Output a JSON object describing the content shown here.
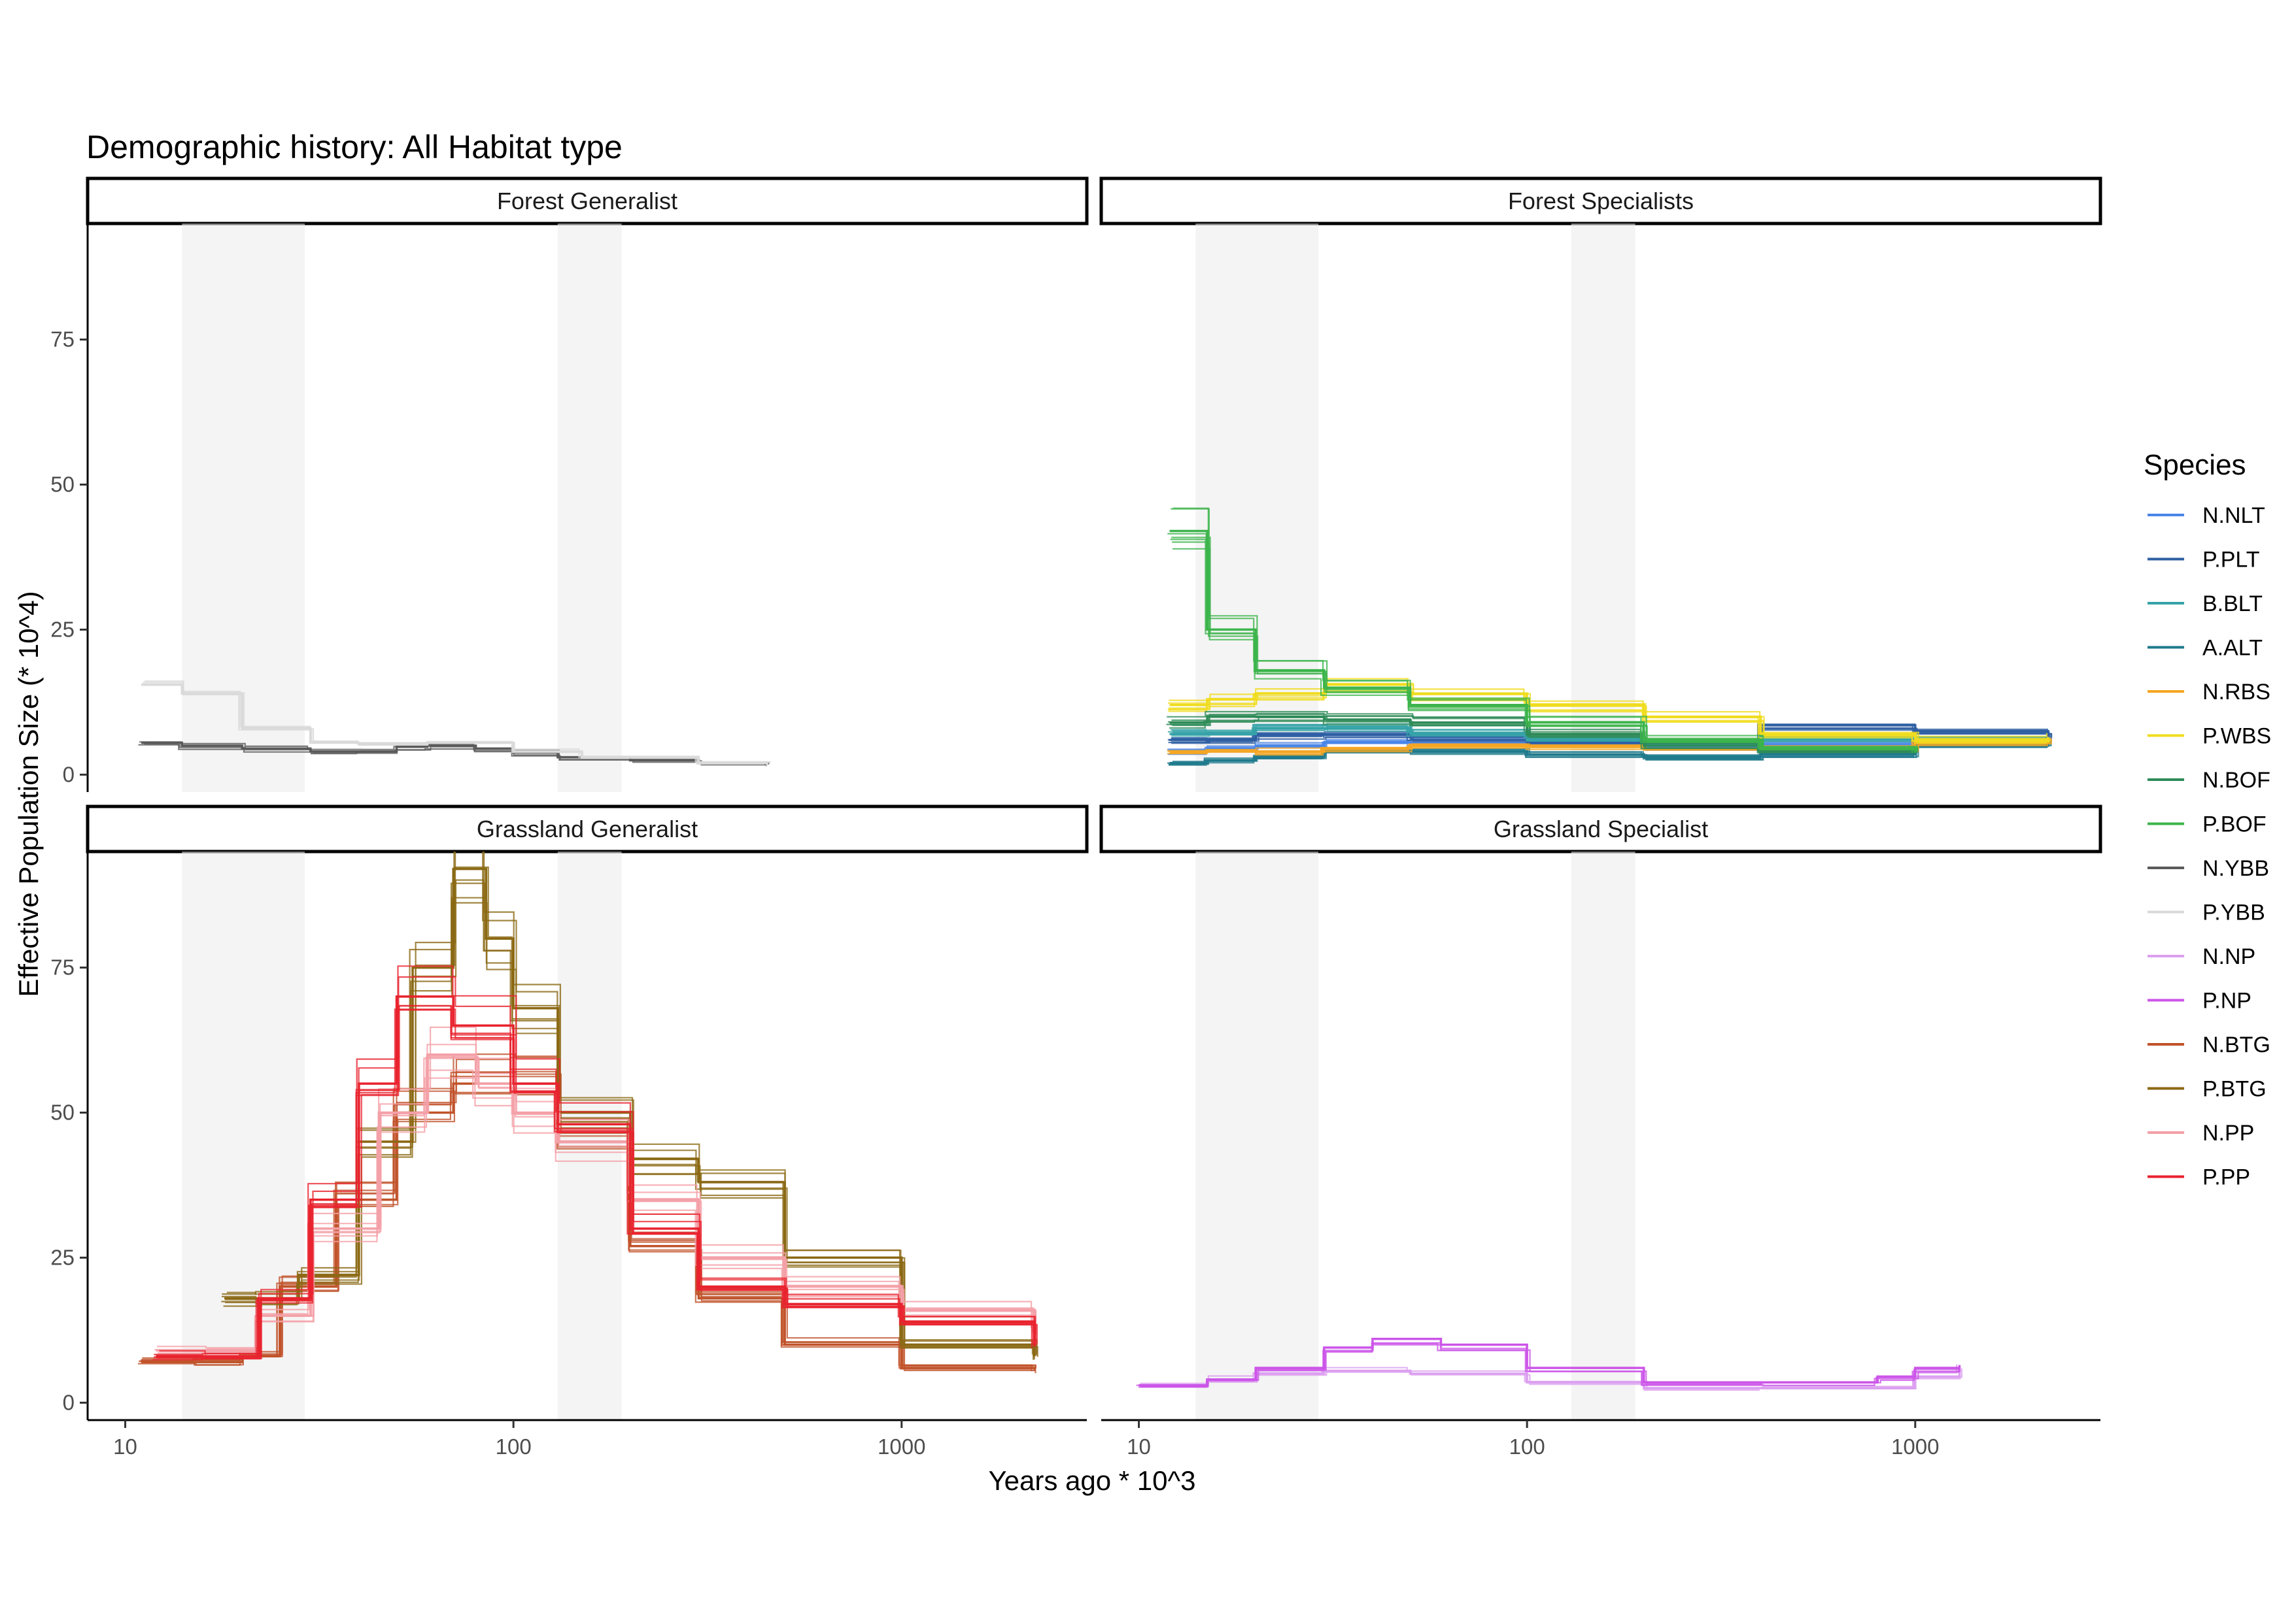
{
  "chart_data": {
    "type": "line",
    "title": "Demographic history: All Habitat type",
    "xlabel": "Years ago * 10^3",
    "ylabel": "Effective Population Size (* 10^4)",
    "x_scale": "log10",
    "xlim": [
      8,
      3000
    ],
    "ylim": [
      -3,
      95
    ],
    "x_ticks": [
      10,
      100,
      1000
    ],
    "x_tick_labels": [
      "10",
      "100",
      "1000"
    ],
    "y_ticks": [
      0,
      25,
      50,
      75
    ],
    "y_tick_labels": [
      "0",
      "25",
      "50",
      "75"
    ],
    "grid": false,
    "shaded_periods": [
      [
        14,
        29
      ],
      [
        130,
        190
      ]
    ],
    "legend": {
      "title": "Species",
      "placement": "right",
      "entries": [
        {
          "name": "N.NLT",
          "color": "#4a86e8"
        },
        {
          "name": "P.PLT",
          "color": "#2e5fa3"
        },
        {
          "name": "B.BLT",
          "color": "#35a3a8"
        },
        {
          "name": "A.ALT",
          "color": "#1f7a8c"
        },
        {
          "name": "N.RBS",
          "color": "#f5a623"
        },
        {
          "name": "P.WBS",
          "color": "#f0dc1e"
        },
        {
          "name": "N.BOF",
          "color": "#2e8b57"
        },
        {
          "name": "P.BOF",
          "color": "#3cb44b"
        },
        {
          "name": "N.YBB",
          "color": "#5a5a5a"
        },
        {
          "name": "P.YBB",
          "color": "#d9d9d9"
        },
        {
          "name": "N.NP",
          "color": "#dca0f0"
        },
        {
          "name": "P.NP",
          "color": "#cc55e8"
        },
        {
          "name": "N.BTG",
          "color": "#c0532a"
        },
        {
          "name": "P.BTG",
          "color": "#8b6914"
        },
        {
          "name": "N.PP",
          "color": "#f4a0a8"
        },
        {
          "name": "P.PP",
          "color": "#e8232e"
        }
      ]
    },
    "panels": [
      {
        "label": "Forest Generalist",
        "series": [
          {
            "name": "N.YBB",
            "x": [
              11,
              14,
              20,
              30,
              40,
              50,
              60,
              80,
              100,
              130,
              200,
              300,
              450
            ],
            "y": [
              5.5,
              5,
              4.5,
              4,
              4,
              4.8,
              5,
              4.5,
              3.8,
              3,
              2.5,
              2,
              1.8
            ]
          },
          {
            "name": "P.YBB",
            "x": [
              11,
              14,
              20,
              30,
              40,
              60,
              100,
              150,
              300,
              450
            ],
            "y": [
              15.5,
              14,
              8,
              5.5,
              5.2,
              5.5,
              4,
              3,
              2,
              1.8
            ]
          }
        ]
      },
      {
        "label": "Forest Specialists",
        "series": [
          {
            "name": "N.NLT",
            "x": [
              12,
              15,
              20,
              30,
              50,
              100,
              200,
              400,
              1000,
              2200
            ],
            "y": [
              4,
              4.5,
              5,
              5.5,
              5.5,
              5,
              4.8,
              5,
              5.5,
              6
            ]
          },
          {
            "name": "P.PLT",
            "x": [
              12,
              15,
              20,
              30,
              50,
              100,
              200,
              400,
              1000,
              2200
            ],
            "y": [
              6,
              6,
              7,
              7,
              6.5,
              5.5,
              5.5,
              8.5,
              7.5,
              6.5
            ]
          },
          {
            "name": "B.BLT",
            "x": [
              12,
              15,
              20,
              30,
              50,
              100,
              200,
              400,
              1000,
              2200
            ],
            "y": [
              7,
              7,
              8,
              8,
              7,
              6,
              5.5,
              6,
              6,
              6
            ]
          },
          {
            "name": "A.ALT",
            "x": [
              12,
              15,
              20,
              30,
              50,
              100,
              200,
              400,
              1000,
              2200
            ],
            "y": [
              2,
              2.5,
              3,
              4,
              4,
              3.5,
              3,
              3.5,
              5,
              6
            ]
          },
          {
            "name": "N.RBS",
            "x": [
              12,
              15,
              20,
              30,
              50,
              100,
              200,
              400,
              1000,
              2200
            ],
            "y": [
              4,
              4,
              4,
              4.5,
              5,
              5,
              4.5,
              4.5,
              5.5,
              6
            ]
          },
          {
            "name": "P.WBS",
            "x": [
              12,
              15,
              20,
              30,
              50,
              100,
              200,
              400,
              1000,
              2200
            ],
            "y": [
              12,
              13,
              14,
              15.5,
              14,
              12,
              10,
              7,
              6,
              6.5
            ]
          },
          {
            "name": "N.BOF",
            "x": [
              12,
              15,
              20,
              30,
              50,
              100,
              200,
              400,
              1000
            ],
            "y": [
              9,
              10,
              10,
              9.5,
              9,
              7,
              5,
              4,
              4
            ]
          },
          {
            "name": "P.BOF",
            "x": [
              12,
              15,
              20,
              30,
              50,
              100,
              200,
              400,
              1000
            ],
            "y": [
              42,
              25,
              18,
              15,
              12,
              9,
              6,
              4.5,
              4
            ]
          }
        ]
      },
      {
        "label": "Grassland Generalist",
        "series": [
          {
            "name": "N.BTG",
            "x": [
              11,
              15,
              20,
              25,
              35,
              50,
              70,
              100,
              130,
              200,
              300,
              500,
              1000,
              2200
            ],
            "y": [
              7,
              7,
              8,
              20,
              35,
              50,
              55,
              55,
              45,
              27,
              18,
              10,
              6,
              5.5
            ]
          },
          {
            "name": "P.BTG",
            "x": [
              18,
              22,
              28,
              40,
              55,
              70,
              85,
              100,
              130,
              200,
              300,
              500,
              1000,
              2200
            ],
            "y": [
              18,
              18,
              22,
              45,
              75,
              92,
              80,
              68,
              50,
              42,
              38,
              25,
              10,
              8
            ]
          },
          {
            "name": "N.PP",
            "x": [
              12,
              16,
              22,
              30,
              45,
              60,
              80,
              100,
              130,
              200,
              300,
              500,
              1000,
              2200
            ],
            "y": [
              9,
              9,
              15,
              30,
              50,
              60,
              55,
              50,
              45,
              35,
              25,
              20,
              16,
              12
            ]
          },
          {
            "name": "P.PP",
            "x": [
              12,
              16,
              22,
              30,
              40,
              50,
              70,
              100,
              130,
              200,
              300,
              500,
              1000,
              2200
            ],
            "y": [
              8,
              8,
              18,
              35,
              55,
              70,
              65,
              55,
              48,
              30,
              20,
              17,
              14,
              10
            ]
          }
        ]
      },
      {
        "label": "Grassland Specialist",
        "series": [
          {
            "name": "N.NP",
            "x": [
              10,
              15,
              20,
              30,
              50,
              100,
              200,
              400,
              1000,
              1300
            ],
            "y": [
              3,
              4,
              5,
              5.5,
              5,
              3.5,
              2.5,
              2.5,
              4.5,
              6
            ]
          },
          {
            "name": "P.NP",
            "x": [
              10,
              15,
              20,
              30,
              40,
              60,
              100,
              200,
              400,
              800,
              1000,
              1300
            ],
            "y": [
              3,
              4,
              6,
              9.5,
              11,
              10,
              6,
              3.5,
              3.5,
              4.5,
              6,
              6.5
            ]
          }
        ]
      }
    ]
  }
}
